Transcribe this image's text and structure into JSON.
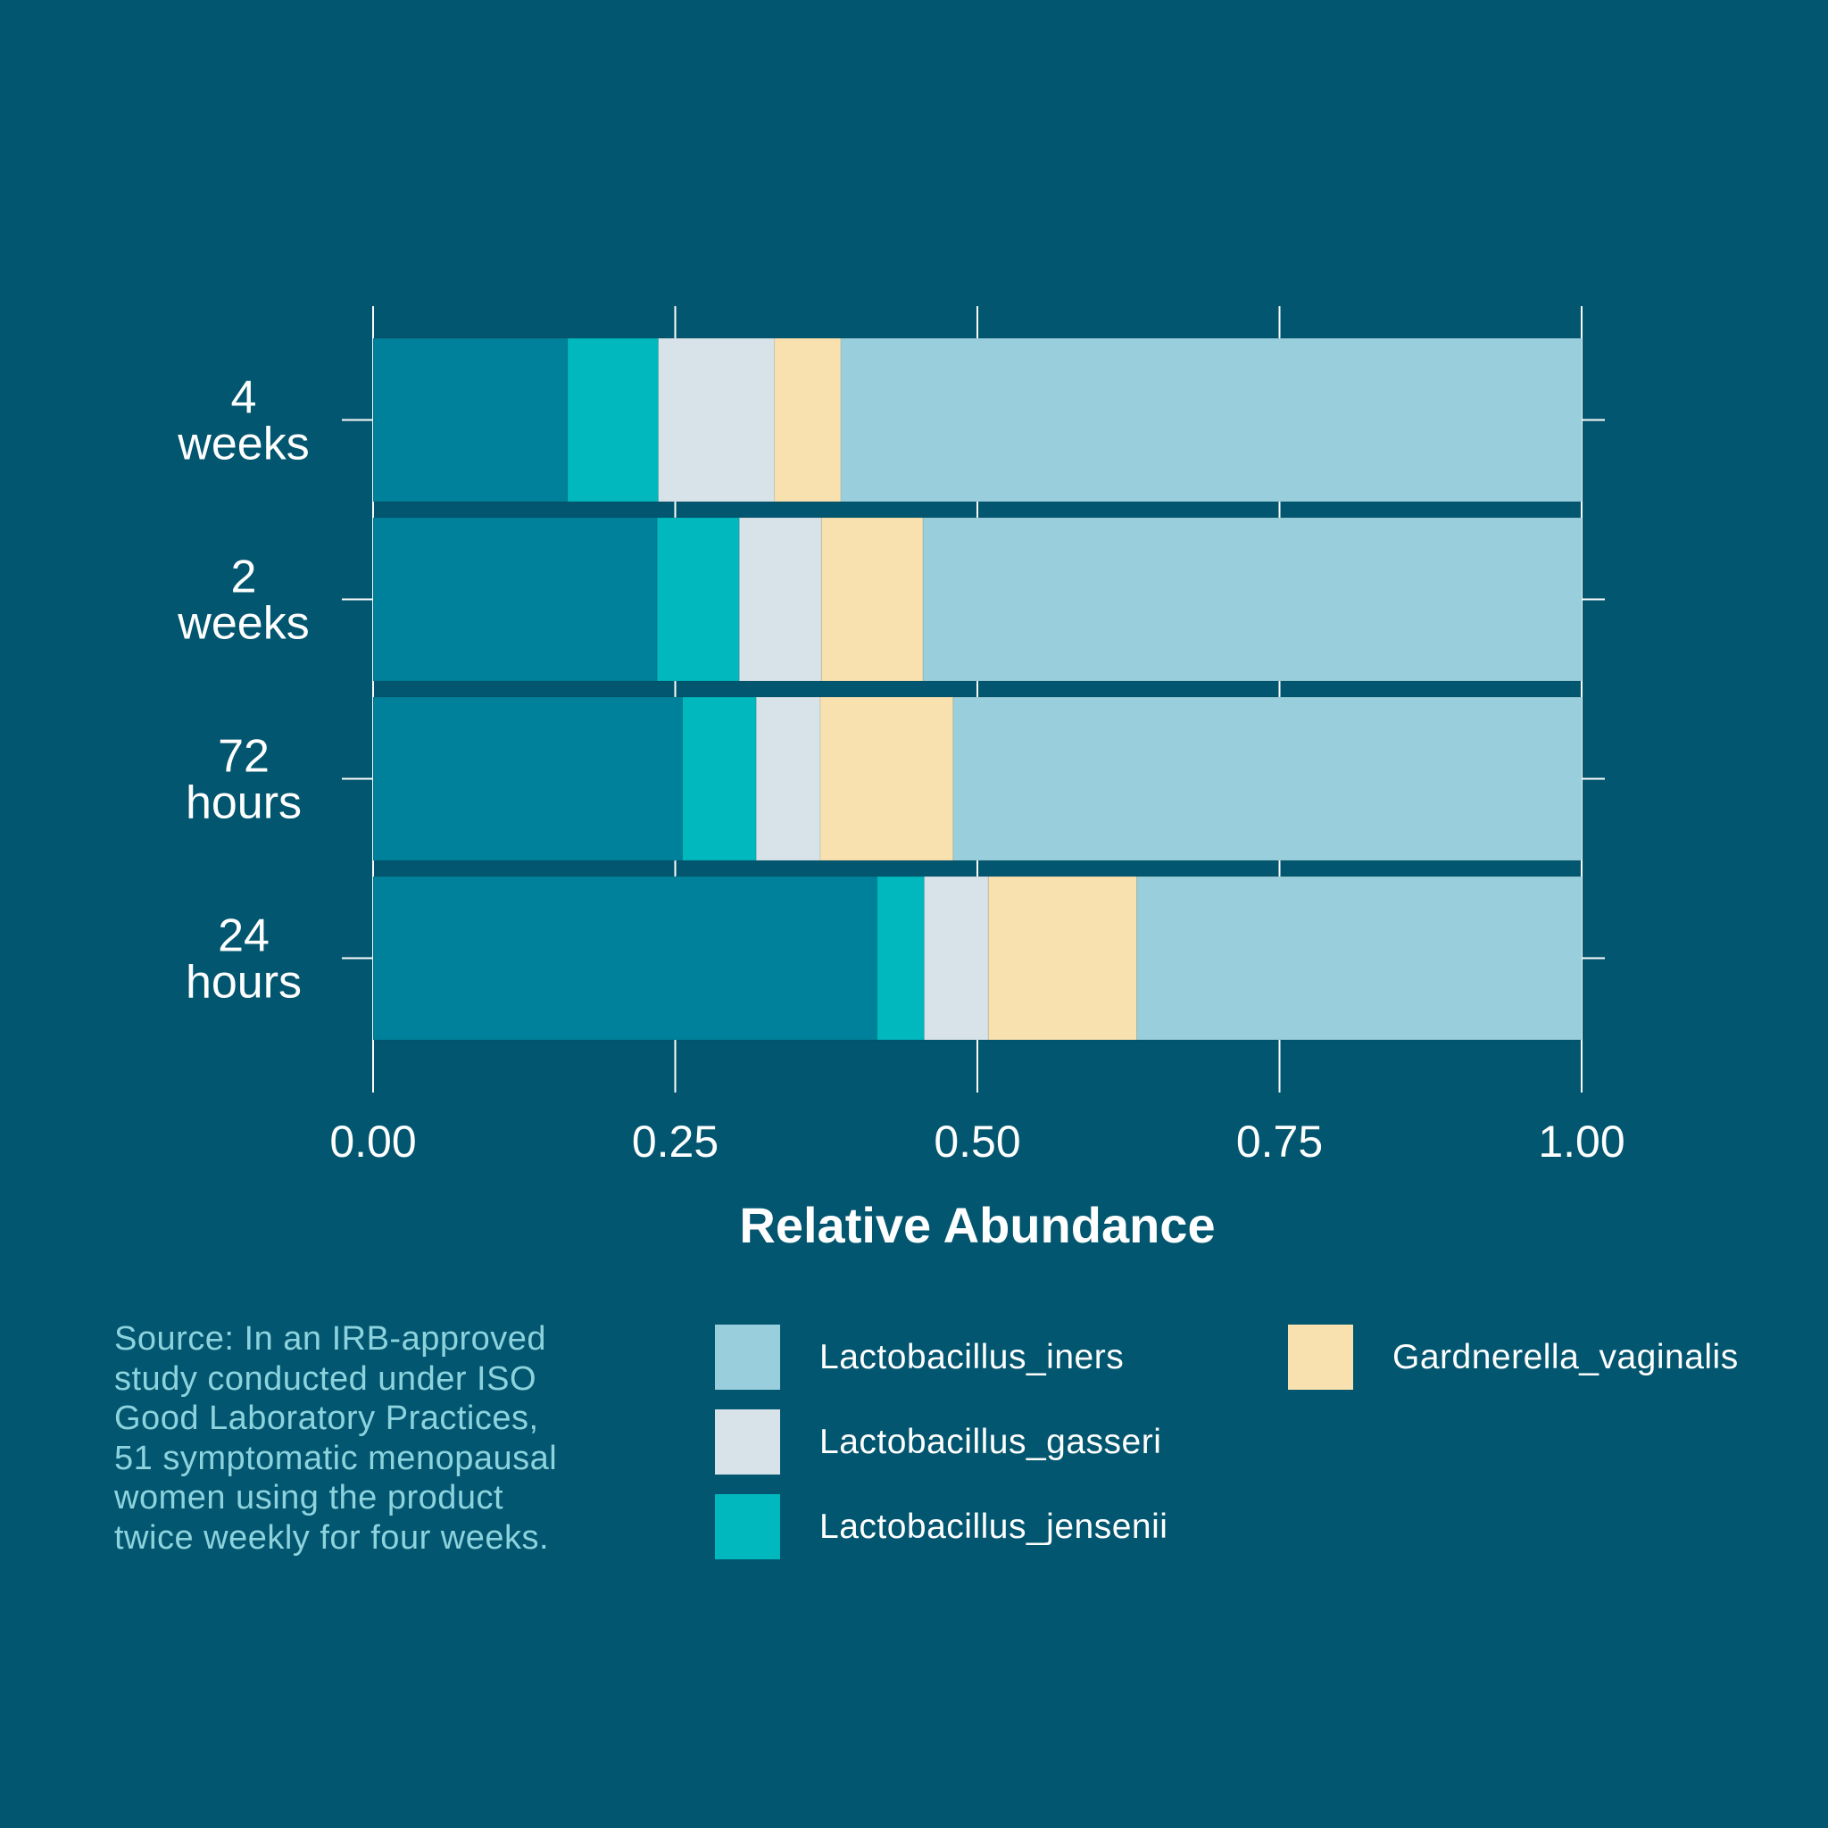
{
  "chart_data": {
    "type": "bar",
    "orientation": "horizontal",
    "stacked": true,
    "xlabel": "Relative Abundance",
    "ylabel": "",
    "xlim": [
      0,
      1
    ],
    "x_ticks": [
      "0.00",
      "0.25",
      "0.50",
      "0.75",
      "1.00"
    ],
    "x_tick_values": [
      0,
      0.25,
      0.5,
      0.75,
      1
    ],
    "categories": [
      "4\nweeks",
      "2\nweeks",
      "72\nhours",
      "24\nhours"
    ],
    "series": [
      {
        "name": "",
        "color": "#00819b",
        "values": [
          0.161,
          0.235,
          0.256,
          0.417
        ]
      },
      {
        "name": "Lactobacillus_jensenii",
        "color": "#00b8bd",
        "values": [
          0.075,
          0.068,
          0.061,
          0.039
        ]
      },
      {
        "name": "Lactobacillus_gasseri",
        "color": "#d8e3e9",
        "values": [
          0.096,
          0.068,
          0.053,
          0.053
        ]
      },
      {
        "name": "Gardnerella_vaginalis",
        "color": "#f8e1ae",
        "values": [
          0.055,
          0.084,
          0.11,
          0.123
        ]
      },
      {
        "name": "Lactobacillus_iners",
        "color": "#99cfdc",
        "values": [
          0.613,
          0.545,
          0.52,
          0.368
        ]
      }
    ],
    "legend": [
      "Lactobacillus_iners",
      "Lactobacillus_gasseri",
      "Lactobacillus_jensenii",
      "Gardnerella_vaginalis"
    ],
    "legend_placement": "bottom",
    "grid": false
  },
  "source_note": "Source: In an IRB-approved\nstudy conducted under ISO\nGood Laboratory Practices,\n51 symptomatic menopausal\nwomen using the product\ntwice weekly for four weeks.",
  "colors": {
    "background": "#02566f",
    "text": "#ffffff",
    "source_text": "#8dd3de"
  }
}
